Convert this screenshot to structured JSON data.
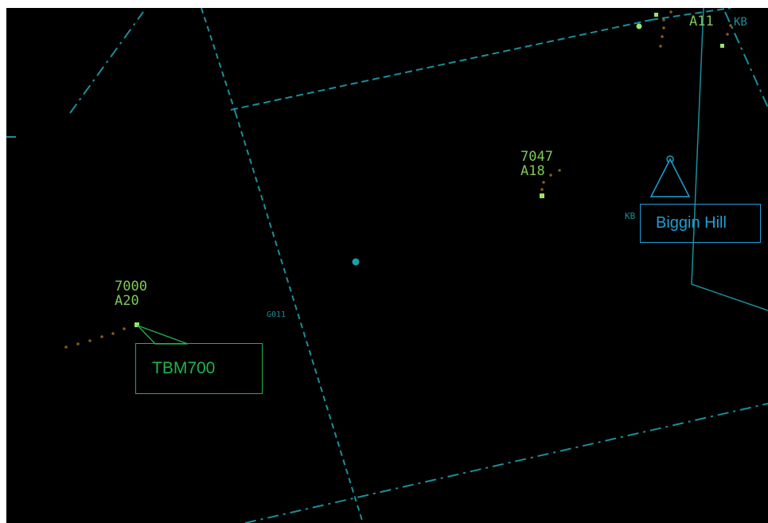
{
  "colors": {
    "background": "#000000",
    "airspace_line": "#1a8f9a",
    "track_label": "#7dc957",
    "track_symbol": "#9be36a",
    "trail_dot": "#8a5a1e",
    "fix_marker": "#1aa0a8",
    "callout_tbm": "#21b34a",
    "callout_biggin": "#1e9fd6"
  },
  "tracks": [
    {
      "id": "track-7000",
      "squawk": "7000",
      "altitude": "A20"
    },
    {
      "id": "track-7047",
      "squawk": "7047",
      "altitude": "A18"
    },
    {
      "id": "track-top",
      "squawk": "",
      "altitude": "A11"
    }
  ],
  "map_labels": {
    "route_label": "G011",
    "kb_label_right": "KB",
    "kb_label_top": "KB"
  },
  "callouts": {
    "tbm700": "TBM700",
    "biggin_hill": "Biggin Hill"
  }
}
